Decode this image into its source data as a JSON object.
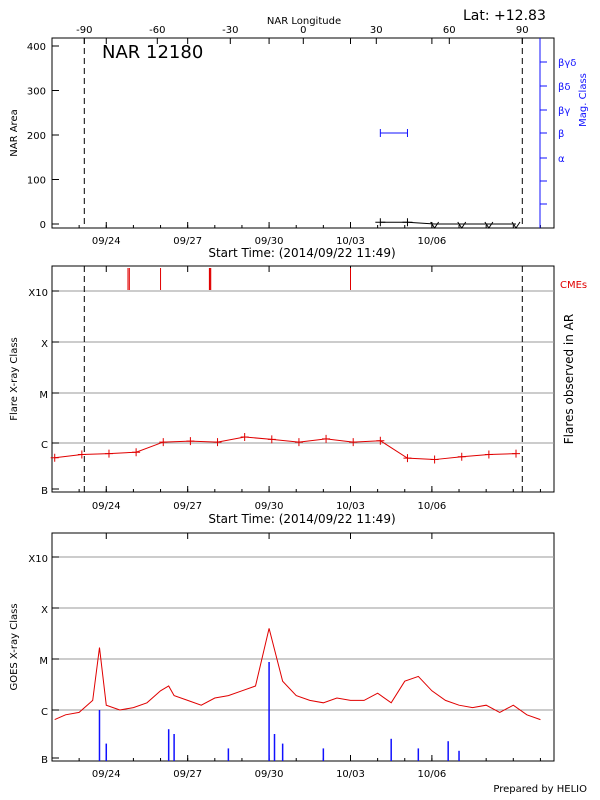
{
  "header": {
    "lat_label": "Lat: +12.83",
    "top_axis_title": "NAR Longitude"
  },
  "footer": {
    "prepared_by": "Prepared by HELIO"
  },
  "chart_data": [
    {
      "type": "line",
      "name": "nar-area-panel",
      "title": "NAR 12180",
      "ylabel": "NAR Area",
      "ylabel_right": "Mag. Class",
      "xlabel": "Start Time: (2014/09/22 11:49)",
      "xticks": [
        "09/24",
        "09/27",
        "09/30",
        "10/03",
        "10/06"
      ],
      "yticks": [
        "0",
        "100",
        "200",
        "300",
        "400"
      ],
      "ylim": [
        0,
        400
      ],
      "top_xticks": [
        "-90",
        "-60",
        "-30",
        "0",
        "30",
        "60",
        "90"
      ],
      "right_yticks": [
        "α",
        "β",
        "βγ",
        "βδ",
        "βγδ"
      ],
      "series": [
        {
          "x": [
            12.1,
            13.1,
            14.1,
            15.1,
            16.1,
            17.1
          ],
          "y": [
            4,
            4,
            -1,
            -1,
            -1,
            -1
          ]
        }
      ],
      "mag_class": {
        "x": [
          12.1,
          13.1
        ],
        "level": "β"
      }
    },
    {
      "type": "line",
      "name": "flare-class-panel",
      "ylabel": "Flare X-ray Class",
      "ylabel_right": "Flares observed in AR",
      "xlabel": "Start Time: (2014/09/22 11:49)",
      "xticks": [
        "09/24",
        "09/27",
        "09/30",
        "10/03",
        "10/06"
      ],
      "yticks": [
        "B",
        "C",
        "M",
        "X",
        "X10"
      ],
      "cme_label": "CMEs",
      "cmes": [
        2.8,
        2.85,
        4.0,
        5.8,
        5.82,
        5.85,
        11.0
      ],
      "series": [
        {
          "x": [
            0.1,
            1.1,
            2.1,
            3.1,
            4.1,
            5.1,
            6.1,
            7.1,
            8.1,
            9.1,
            10.1,
            11.1,
            12.1,
            13.1,
            14.1,
            15.1,
            16.1,
            17.1
          ],
          "y": [
            0.68,
            0.75,
            0.77,
            0.8,
            1.02,
            1.04,
            1.02,
            1.13,
            1.08,
            1.02,
            1.09,
            1.02,
            1.05,
            0.67,
            0.64,
            0.7,
            0.75,
            0.77
          ]
        }
      ]
    },
    {
      "type": "line",
      "name": "goes-panel",
      "ylabel": "GOES X-ray Class",
      "xticks": [
        "09/24",
        "09/27",
        "09/30",
        "10/03",
        "10/06"
      ],
      "yticks": [
        "B",
        "C",
        "M",
        "X",
        "X10"
      ],
      "series": [
        {
          "x": [
            0.1,
            0.5,
            1.0,
            1.5,
            1.75,
            2.0,
            2.5,
            3.0,
            3.5,
            4.0,
            4.3,
            4.5,
            5.0,
            5.5,
            6.0,
            6.5,
            7.0,
            7.5,
            8.0,
            8.5,
            9.0,
            9.5,
            10.0,
            10.5,
            11.0,
            11.5,
            12.0,
            12.5,
            13.0,
            13.5,
            14.0,
            14.5,
            15.0,
            15.5,
            16.0,
            16.5,
            17.0,
            17.5,
            18.0
          ],
          "y": [
            0.8,
            0.9,
            0.95,
            1.2,
            2.3,
            1.1,
            1.0,
            1.05,
            1.15,
            1.4,
            1.5,
            1.3,
            1.2,
            1.1,
            1.25,
            1.3,
            1.4,
            1.5,
            2.7,
            1.6,
            1.3,
            1.2,
            1.15,
            1.25,
            1.2,
            1.2,
            1.35,
            1.15,
            1.6,
            1.7,
            1.4,
            1.2,
            1.1,
            1.05,
            1.1,
            0.95,
            1.1,
            0.9,
            0.8
          ]
        },
        {
          "x": [
            1.75,
            2.0,
            4.3,
            4.5,
            6.5,
            8.0,
            8.2,
            8.5,
            10.0,
            12.5,
            13.5,
            14.6,
            15.0
          ],
          "y": [
            1.0,
            0.3,
            0.6,
            0.5,
            0.2,
            2.0,
            0.5,
            0.3,
            0.2,
            0.4,
            0.2,
            0.35,
            0.15
          ]
        }
      ]
    }
  ]
}
